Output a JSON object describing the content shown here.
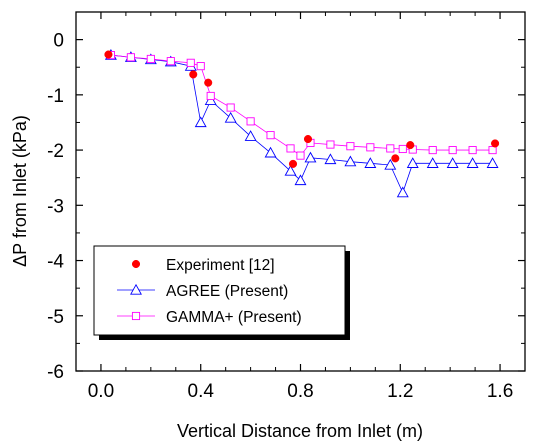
{
  "chart_data": {
    "type": "scatter",
    "xlabel": "Vertical Distance from Inlet (m)",
    "ylabel": "ΔP from Inlet (kPa)",
    "xlim": [
      -0.1,
      1.7
    ],
    "ylim": [
      -6,
      0.5
    ],
    "x_ticks": [
      0.0,
      0.4,
      0.8,
      1.2,
      1.6
    ],
    "x_tick_labels": [
      "0.0",
      "0.4",
      "0.8",
      "1.2",
      "1.6"
    ],
    "y_ticks": [
      0,
      -1,
      -2,
      -3,
      -4,
      -5,
      -6
    ],
    "y_tick_labels": [
      "0",
      "-1",
      "-2",
      "-3",
      "-4",
      "-5",
      "-6"
    ],
    "legend_position": "bottom-left",
    "series": [
      {
        "name": "Experiment [12]",
        "style": "filled-circle",
        "color": "#ff0000",
        "x": [
          0.03,
          0.37,
          0.43,
          0.77,
          0.83,
          1.18,
          1.24,
          1.58
        ],
        "y": [
          -0.27,
          -0.63,
          -0.78,
          -2.25,
          -1.8,
          -2.15,
          -1.91,
          -1.88
        ]
      },
      {
        "name": "AGREE (Present)",
        "style": "open-triangle-line",
        "color": "#0000ff",
        "x": [
          0.04,
          0.12,
          0.2,
          0.28,
          0.36,
          0.4,
          0.44,
          0.52,
          0.6,
          0.68,
          0.76,
          0.8,
          0.84,
          0.92,
          1.0,
          1.08,
          1.16,
          1.21,
          1.25,
          1.33,
          1.41,
          1.49,
          1.57
        ],
        "y": [
          -0.28,
          -0.32,
          -0.36,
          -0.4,
          -0.48,
          -1.5,
          -1.1,
          -1.42,
          -1.75,
          -2.05,
          -2.38,
          -2.55,
          -2.14,
          -2.17,
          -2.21,
          -2.24,
          -2.27,
          -2.77,
          -2.24,
          -2.24,
          -2.24,
          -2.24,
          -2.24
        ]
      },
      {
        "name": "GAMMA+ (Present)",
        "style": "open-square-line",
        "color": "#ff00ff",
        "x": [
          0.04,
          0.12,
          0.2,
          0.28,
          0.36,
          0.4,
          0.44,
          0.52,
          0.6,
          0.68,
          0.76,
          0.8,
          0.84,
          0.92,
          1.0,
          1.08,
          1.16,
          1.21,
          1.25,
          1.33,
          1.41,
          1.49,
          1.57
        ],
        "y": [
          -0.28,
          -0.32,
          -0.35,
          -0.39,
          -0.42,
          -0.48,
          -1.02,
          -1.23,
          -1.48,
          -1.73,
          -1.97,
          -2.1,
          -1.87,
          -1.9,
          -1.93,
          -1.95,
          -1.97,
          -1.98,
          -1.99,
          -2.0,
          -2.0,
          -2.0,
          -2.0
        ]
      }
    ]
  }
}
